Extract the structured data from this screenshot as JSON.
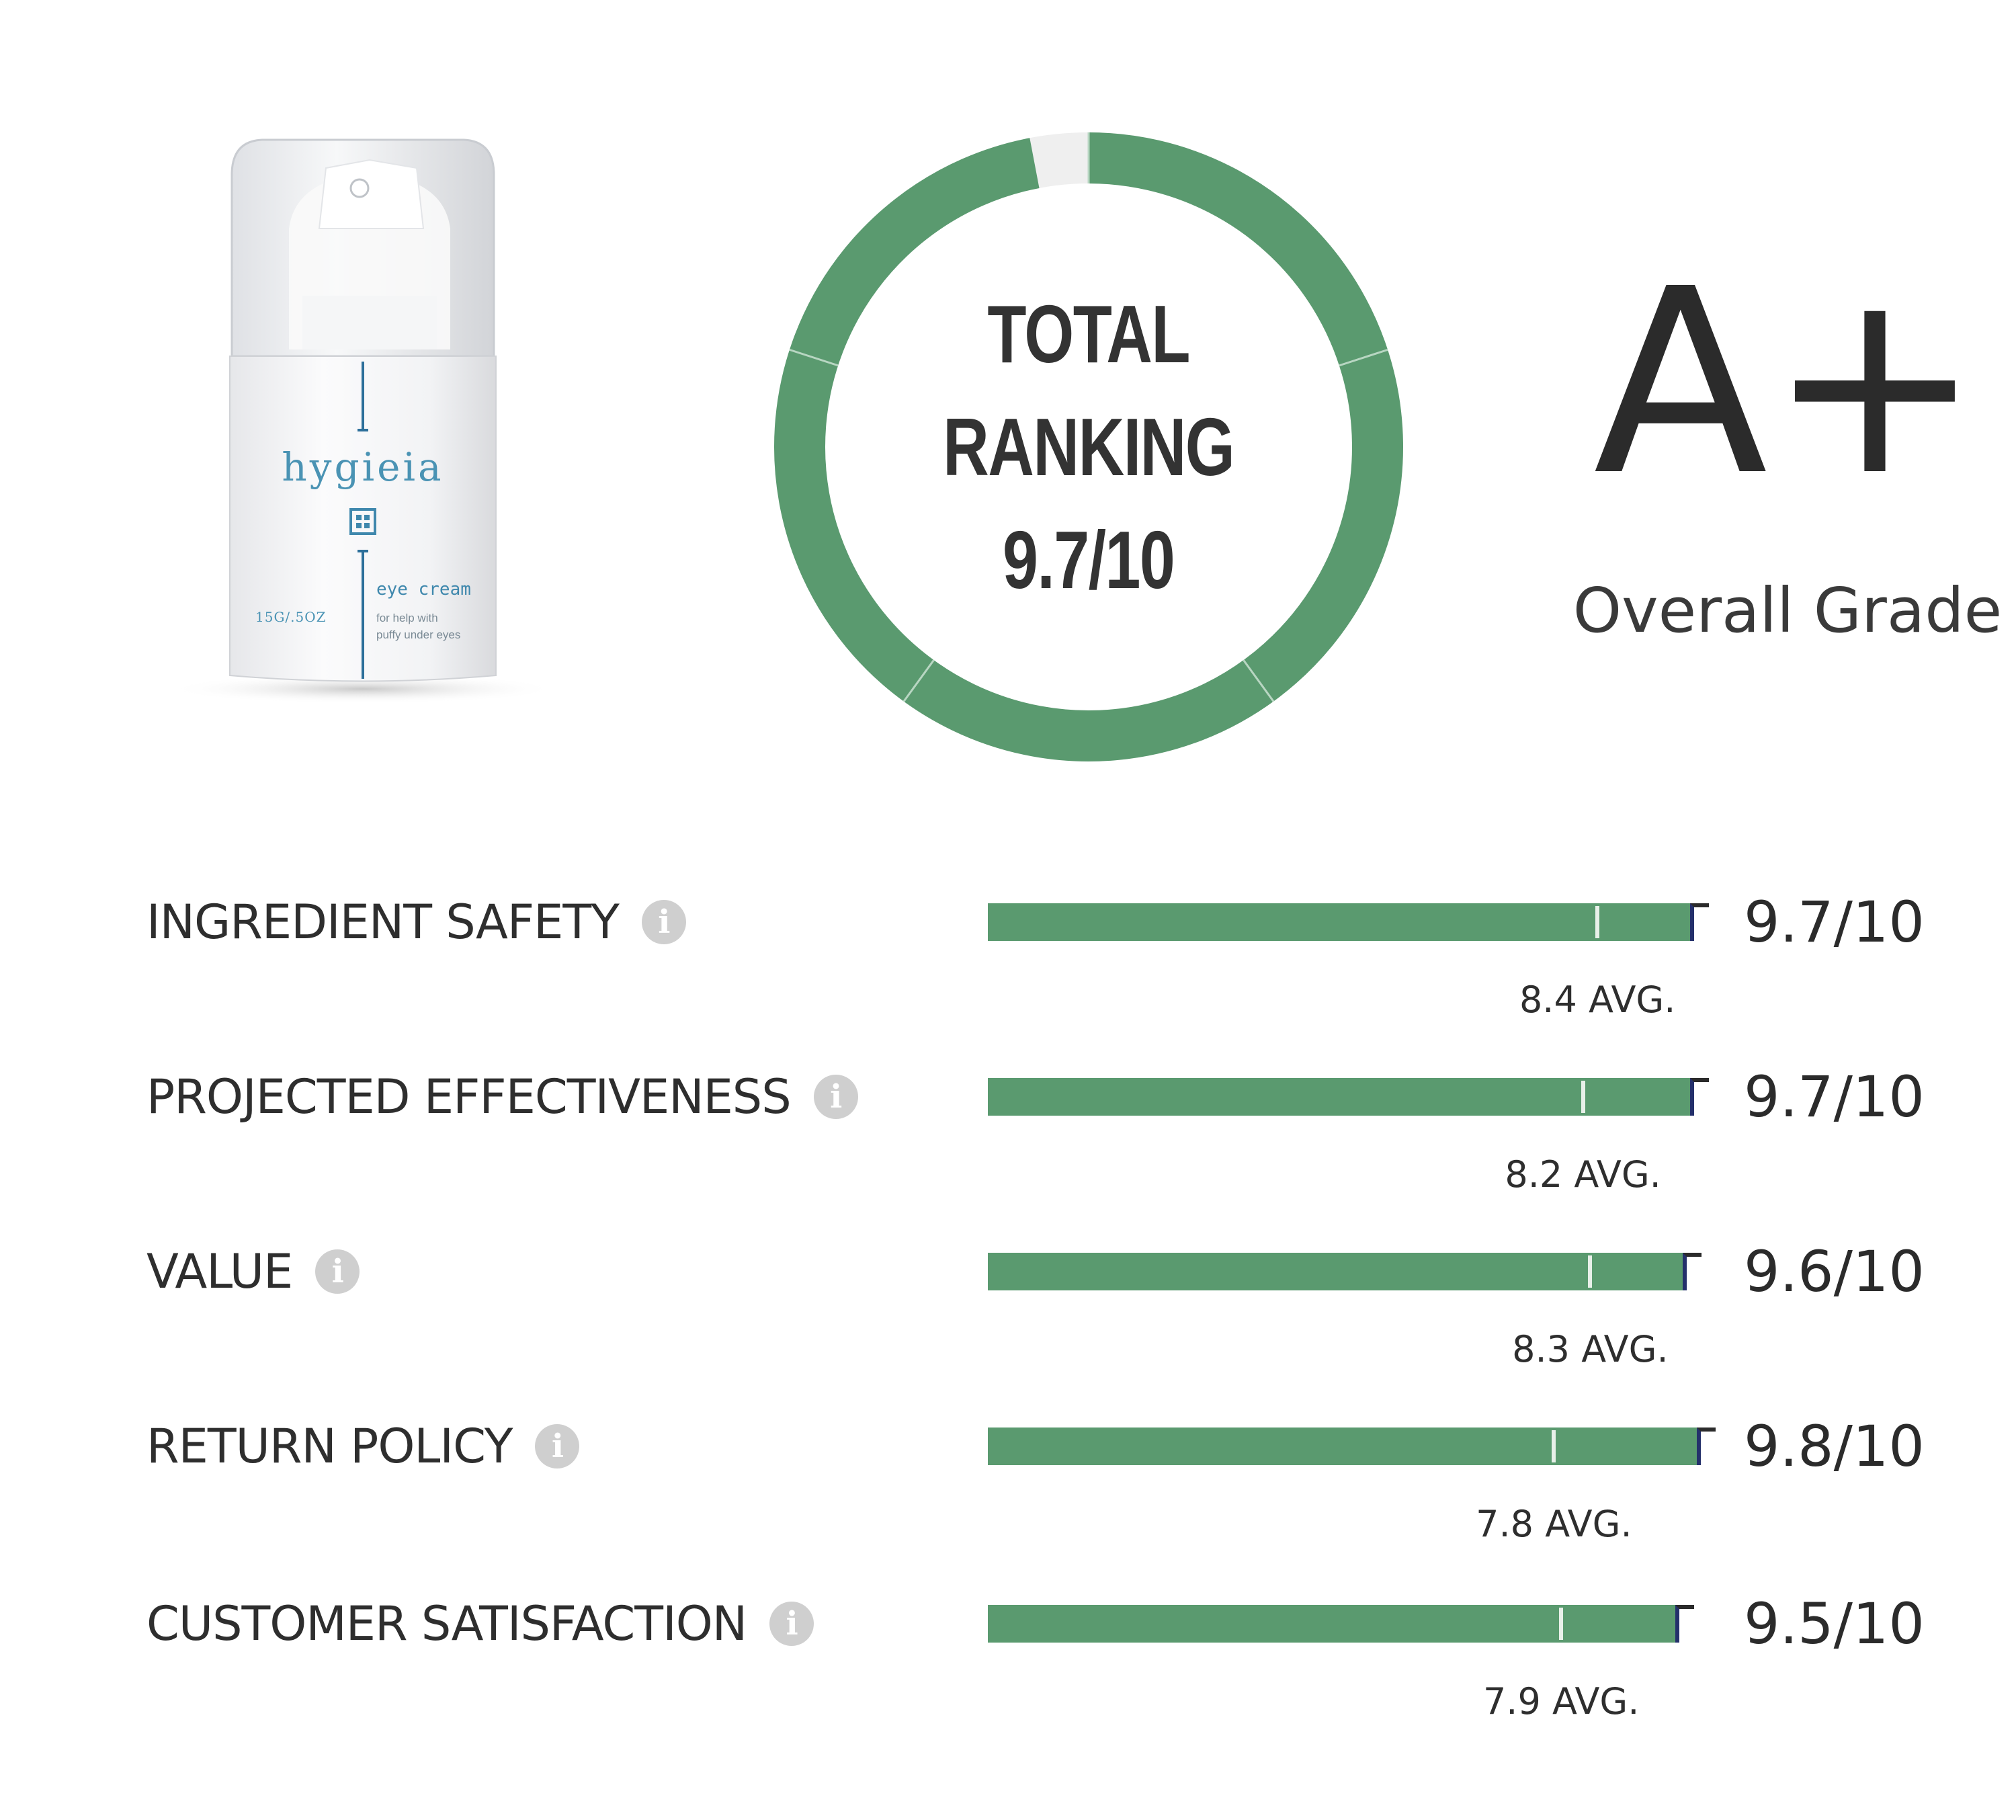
{
  "product": {
    "brand": "hygieia",
    "product_type": "eye cream",
    "tagline_line1": "for help with",
    "tagline_line2": "puffy under eyes",
    "size": "15G/.5OZ"
  },
  "total_ranking": {
    "line1": "TOTAL",
    "line2": "RANKING",
    "line3": "9.7/10",
    "score": 9.7,
    "max": 10,
    "segments": 5,
    "ring_color": "#5a9a6f"
  },
  "grade": {
    "letter": "A+",
    "label": "Overall Grade"
  },
  "chart_data": {
    "type": "bar",
    "orientation": "horizontal",
    "categories": [
      "INGREDIENT SAFETY",
      "PROJECTED EFFECTIVENESS",
      "VALUE",
      "RETURN POLICY",
      "CUSTOMER SATISFACTION"
    ],
    "series": [
      {
        "name": "score",
        "values": [
          9.7,
          9.7,
          9.6,
          9.8,
          9.5
        ]
      },
      {
        "name": "average",
        "values": [
          8.4,
          8.2,
          8.3,
          7.8,
          7.9
        ]
      }
    ],
    "score_labels": [
      "9.7/10",
      "9.7/10",
      "9.6/10",
      "9.8/10",
      "9.5/10"
    ],
    "avg_labels": [
      "8.4 AVG.",
      "8.2 AVG.",
      "8.3 AVG.",
      "7.8 AVG.",
      "7.9 AVG."
    ],
    "xlim": [
      0,
      10
    ],
    "bar_color": "#5a9a6f",
    "grid": false
  },
  "icons": {
    "info": "info-icon",
    "info_glyph": "i"
  }
}
